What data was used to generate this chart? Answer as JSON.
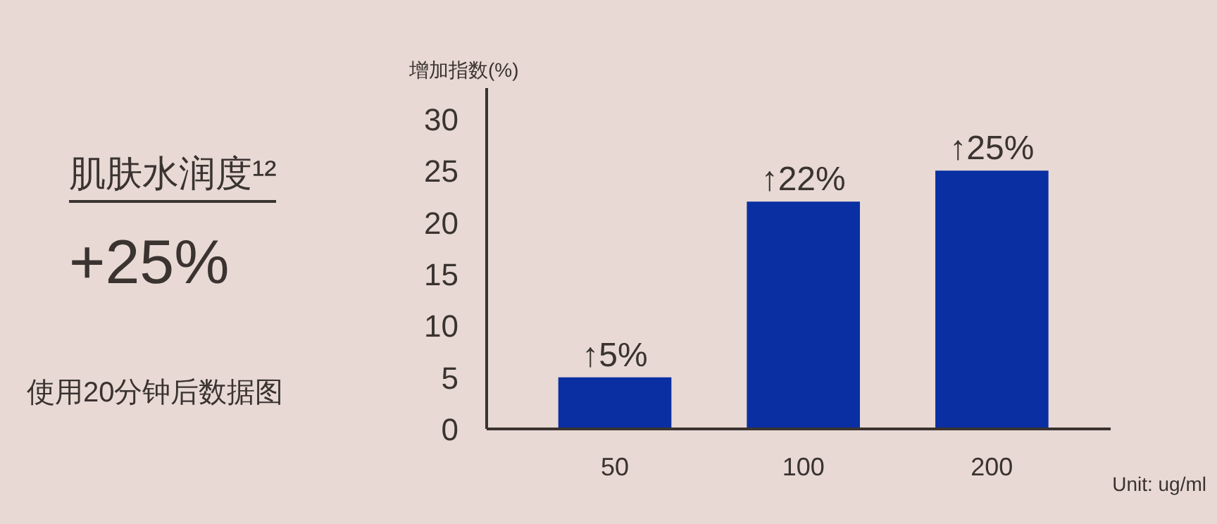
{
  "chart_data": {
    "type": "bar",
    "title": "肌肤水润度¹²",
    "subtitle": "+25%",
    "annotations": [
      "使用20分钟后数据图"
    ],
    "ylabel": "增加指数(%)",
    "xlabel": "Unit: ug/ml",
    "categories": [
      "50",
      "100",
      "200"
    ],
    "series": [
      {
        "color": "#0a2fa3",
        "values": [
          5,
          22,
          25
        ],
        "value_labels": [
          "↑5%",
          "↑22%",
          "↑25%"
        ]
      }
    ],
    "ylim": [
      0,
      33
    ],
    "yticks": [
      0,
      5,
      10,
      15,
      20,
      25,
      30
    ]
  }
}
